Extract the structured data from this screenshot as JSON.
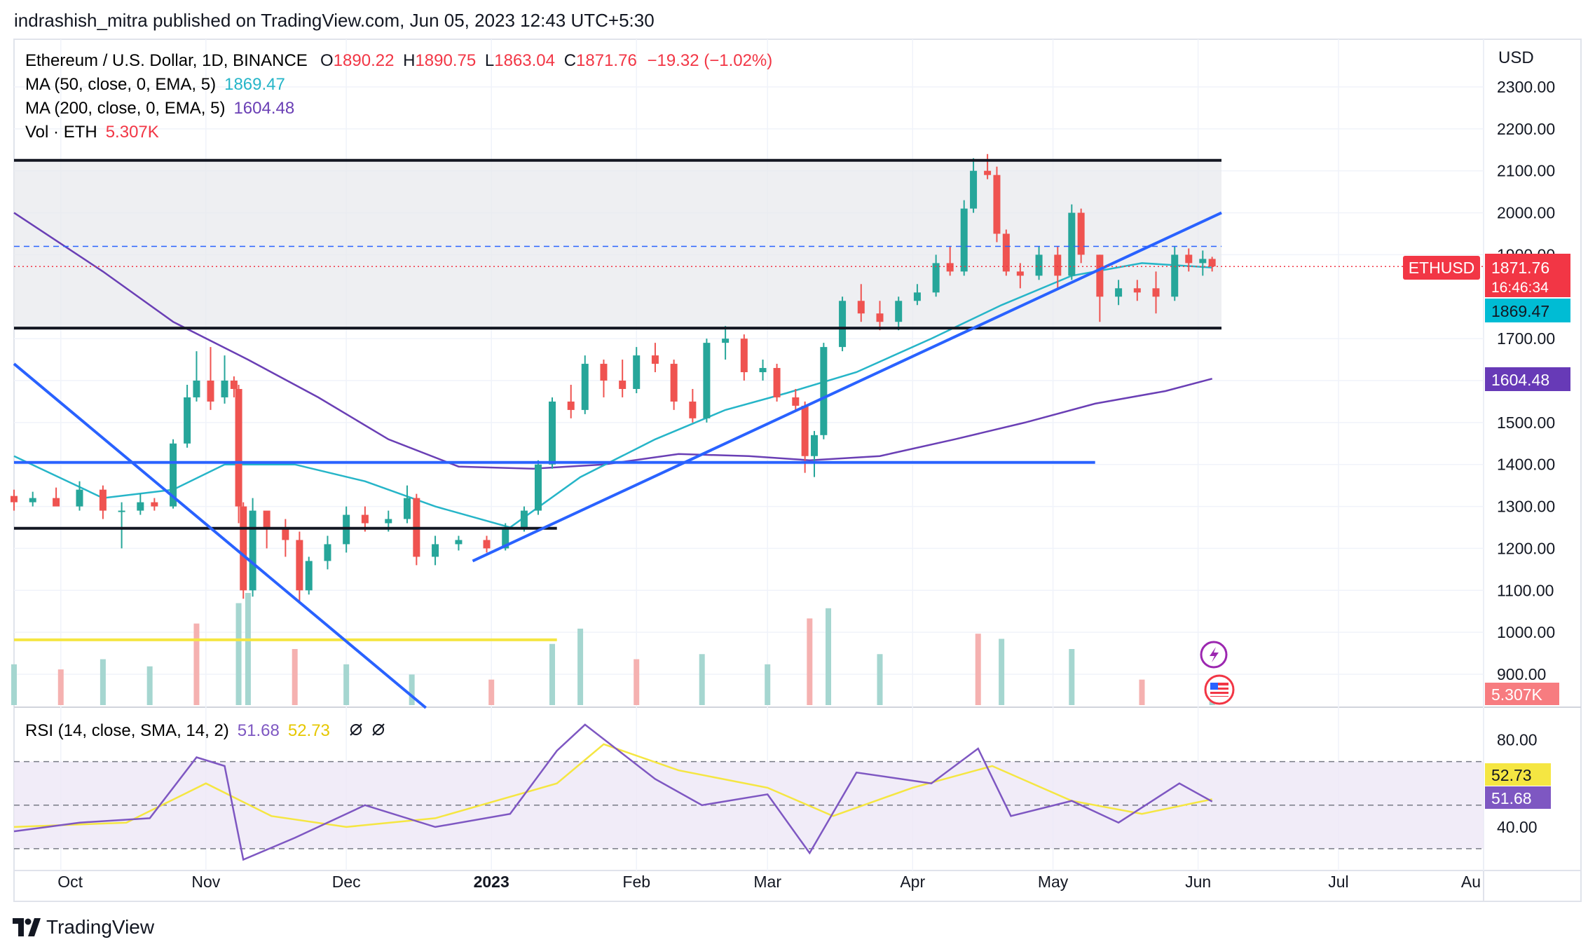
{
  "header": {
    "publish_line": "indrashish_mitra published on TradingView.com, Jun 05, 2023 12:43 UTC+5:30"
  },
  "footer": {
    "brand": "TradingView"
  },
  "legend": {
    "symbol": "Ethereum / U.S. Dollar, 1D, BINANCE",
    "o_label": "O",
    "o": "1890.22",
    "h_label": "H",
    "h": "1890.75",
    "l_label": "L",
    "l": "1863.04",
    "c_label": "C",
    "c": "1871.76",
    "change": "−19.32 (−1.02%)",
    "ma50_label": "MA (50, close, 0, EMA, 5)",
    "ma50": "1869.47",
    "ma200_label": "MA (200, close, 0, EMA, 5)",
    "ma200": "1604.48",
    "vol_label": "Vol · ETH",
    "vol": "5.307K"
  },
  "rsi_legend": {
    "label": "RSI (14, close, SMA, 14, 2)",
    "rsi": "51.68",
    "sma": "52.73",
    "icons": [
      "eye-off-icon",
      "eye-off-icon"
    ]
  },
  "price_axis": {
    "currency": "USD",
    "ticks": [
      "2300.00",
      "2200.00",
      "2100.00",
      "2000.00",
      "1900.00",
      "1700.00",
      "1600.00",
      "1500.00",
      "1400.00",
      "1300.00",
      "1200.00",
      "1100.00",
      "1000.00",
      "900.00"
    ]
  },
  "rsi_axis": {
    "ticks": [
      "80.00",
      "40.00"
    ]
  },
  "badges": {
    "ticker": "ETHUSD",
    "last_price": "1871.76",
    "countdown": "16:46:34",
    "ma50": "1869.47",
    "ma200": "1604.48",
    "volume": "5.307K",
    "rsi_sma": "52.73",
    "rsi": "51.68"
  },
  "time_axis": {
    "labels": [
      "Oct",
      "Nov",
      "Dec",
      "2023",
      "Feb",
      "Mar",
      "Apr",
      "May",
      "Jun",
      "Jul",
      "Au"
    ]
  },
  "colors": {
    "up": "#26a69a",
    "down": "#ef5350",
    "ma50": "#26b5c8",
    "ma200": "#6a3fb5",
    "trendline": "#2962ff",
    "volume_line": "#f5e642",
    "rsi": "#7e57c2",
    "rsi_sma": "#f5e642",
    "last_price": "#f23645",
    "badge_ma50": "#00bcd4",
    "badge_ma200": "#673ab7"
  },
  "chart_data": {
    "type": "candlestick",
    "symbol": "ETHUSD",
    "timeframe": "1D",
    "x_range": [
      "2022-09-21",
      "2023-08-01"
    ],
    "y_range": [
      820,
      2380
    ],
    "candles": [
      [
        "2022-09-21",
        1325,
        1340,
        1290,
        1310
      ],
      [
        "2022-09-25",
        1310,
        1335,
        1300,
        1320
      ],
      [
        "2022-09-30",
        1320,
        1345,
        1305,
        1300
      ],
      [
        "2022-10-05",
        1300,
        1360,
        1290,
        1340
      ],
      [
        "2022-10-10",
        1340,
        1350,
        1270,
        1290
      ],
      [
        "2022-10-14",
        1290,
        1310,
        1200,
        1290
      ],
      [
        "2022-10-18",
        1290,
        1330,
        1280,
        1310
      ],
      [
        "2022-10-21",
        1310,
        1320,
        1290,
        1300
      ],
      [
        "2022-10-25",
        1300,
        1460,
        1295,
        1450
      ],
      [
        "2022-10-28",
        1450,
        1590,
        1440,
        1560
      ],
      [
        "2022-10-30",
        1560,
        1670,
        1550,
        1600
      ],
      [
        "2022-11-02",
        1600,
        1680,
        1530,
        1550
      ],
      [
        "2022-11-05",
        1560,
        1660,
        1545,
        1600
      ],
      [
        "2022-11-07",
        1600,
        1610,
        1560,
        1580
      ],
      [
        "2022-11-08",
        1580,
        1590,
        1260,
        1300
      ],
      [
        "2022-11-09",
        1300,
        1310,
        1080,
        1100
      ],
      [
        "2022-11-11",
        1100,
        1320,
        1085,
        1290
      ],
      [
        "2022-11-14",
        1290,
        1280,
        1200,
        1250
      ],
      [
        "2022-11-18",
        1250,
        1270,
        1180,
        1220
      ],
      [
        "2022-11-21",
        1220,
        1240,
        1070,
        1100
      ],
      [
        "2022-11-23",
        1100,
        1180,
        1090,
        1170
      ],
      [
        "2022-11-27",
        1170,
        1230,
        1150,
        1210
      ],
      [
        "2022-12-01",
        1210,
        1300,
        1190,
        1280
      ],
      [
        "2022-12-05",
        1280,
        1300,
        1240,
        1260
      ],
      [
        "2022-12-10",
        1260,
        1290,
        1240,
        1270
      ],
      [
        "2022-12-14",
        1270,
        1350,
        1260,
        1320
      ],
      [
        "2022-12-16",
        1320,
        1330,
        1160,
        1180
      ],
      [
        "2022-12-20",
        1180,
        1230,
        1160,
        1210
      ],
      [
        "2022-12-25",
        1210,
        1230,
        1195,
        1220
      ],
      [
        "2022-12-31",
        1220,
        1230,
        1190,
        1200
      ],
      [
        "2023-01-04",
        1200,
        1260,
        1195,
        1250
      ],
      [
        "2023-01-08",
        1250,
        1300,
        1240,
        1290
      ],
      [
        "2023-01-11",
        1290,
        1410,
        1280,
        1400
      ],
      [
        "2023-01-14",
        1400,
        1560,
        1390,
        1550
      ],
      [
        "2023-01-18",
        1550,
        1590,
        1510,
        1530
      ],
      [
        "2023-01-21",
        1530,
        1660,
        1520,
        1640
      ],
      [
        "2023-01-25",
        1640,
        1650,
        1560,
        1600
      ],
      [
        "2023-01-29",
        1600,
        1650,
        1560,
        1580
      ],
      [
        "2023-02-01",
        1580,
        1680,
        1570,
        1660
      ],
      [
        "2023-02-05",
        1660,
        1690,
        1620,
        1640
      ],
      [
        "2023-02-09",
        1640,
        1650,
        1530,
        1550
      ],
      [
        "2023-02-13",
        1550,
        1580,
        1500,
        1510
      ],
      [
        "2023-02-16",
        1510,
        1700,
        1500,
        1690
      ],
      [
        "2023-02-20",
        1690,
        1730,
        1650,
        1700
      ],
      [
        "2023-02-24",
        1700,
        1710,
        1600,
        1620
      ],
      [
        "2023-02-28",
        1620,
        1650,
        1600,
        1630
      ],
      [
        "2023-03-03",
        1630,
        1640,
        1550,
        1560
      ],
      [
        "2023-03-07",
        1560,
        1580,
        1530,
        1540
      ],
      [
        "2023-03-09",
        1540,
        1550,
        1380,
        1420
      ],
      [
        "2023-03-11",
        1420,
        1480,
        1370,
        1470
      ],
      [
        "2023-03-13",
        1470,
        1690,
        1460,
        1680
      ],
      [
        "2023-03-17",
        1680,
        1800,
        1670,
        1790
      ],
      [
        "2023-03-21",
        1790,
        1830,
        1740,
        1760
      ],
      [
        "2023-03-25",
        1760,
        1790,
        1720,
        1740
      ],
      [
        "2023-03-29",
        1740,
        1800,
        1720,
        1790
      ],
      [
        "2023-04-02",
        1790,
        1830,
        1780,
        1810
      ],
      [
        "2023-04-06",
        1810,
        1900,
        1800,
        1880
      ],
      [
        "2023-04-09",
        1880,
        1920,
        1850,
        1860
      ],
      [
        "2023-04-12",
        1860,
        2030,
        1850,
        2010
      ],
      [
        "2023-04-14",
        2010,
        2130,
        2000,
        2100
      ],
      [
        "2023-04-17",
        2100,
        2140,
        2080,
        2090
      ],
      [
        "2023-04-19",
        2090,
        2110,
        1930,
        1950
      ],
      [
        "2023-04-21",
        1950,
        1960,
        1850,
        1860
      ],
      [
        "2023-04-24",
        1860,
        1880,
        1820,
        1850
      ],
      [
        "2023-04-28",
        1850,
        1920,
        1840,
        1900
      ],
      [
        "2023-05-02",
        1900,
        1920,
        1820,
        1850
      ],
      [
        "2023-05-05",
        1850,
        2020,
        1840,
        2000
      ],
      [
        "2023-05-07",
        2000,
        2010,
        1880,
        1900
      ],
      [
        "2023-05-11",
        1900,
        1900,
        1740,
        1800
      ],
      [
        "2023-05-15",
        1800,
        1840,
        1780,
        1820
      ],
      [
        "2023-05-19",
        1820,
        1840,
        1790,
        1810
      ],
      [
        "2023-05-23",
        1820,
        1860,
        1760,
        1800
      ],
      [
        "2023-05-27",
        1800,
        1920,
        1790,
        1900
      ],
      [
        "2023-05-30",
        1900,
        1915,
        1860,
        1880
      ],
      [
        "2023-06-02",
        1880,
        1910,
        1850,
        1890
      ],
      [
        "2023-06-04",
        1890,
        1895,
        1860,
        1872
      ]
    ],
    "ma50": [
      [
        "2022-09-21",
        1420
      ],
      [
        "2022-10-10",
        1320
      ],
      [
        "2022-10-25",
        1340
      ],
      [
        "2022-11-05",
        1400
      ],
      [
        "2022-11-20",
        1400
      ],
      [
        "2022-12-05",
        1360
      ],
      [
        "2022-12-20",
        1300
      ],
      [
        "2023-01-05",
        1250
      ],
      [
        "2023-01-20",
        1370
      ],
      [
        "2023-02-05",
        1460
      ],
      [
        "2023-02-20",
        1530
      ],
      [
        "2023-03-05",
        1570
      ],
      [
        "2023-03-20",
        1620
      ],
      [
        "2023-04-05",
        1700
      ],
      [
        "2023-04-20",
        1780
      ],
      [
        "2023-05-05",
        1850
      ],
      [
        "2023-05-20",
        1880
      ],
      [
        "2023-06-04",
        1869.47
      ]
    ],
    "ma200": [
      [
        "2022-09-21",
        2000
      ],
      [
        "2022-10-10",
        1860
      ],
      [
        "2022-10-25",
        1740
      ],
      [
        "2022-11-10",
        1650
      ],
      [
        "2022-11-25",
        1560
      ],
      [
        "2022-12-10",
        1460
      ],
      [
        "2022-12-25",
        1395
      ],
      [
        "2023-01-10",
        1390
      ],
      [
        "2023-01-25",
        1400
      ],
      [
        "2023-02-10",
        1425
      ],
      [
        "2023-02-25",
        1420
      ],
      [
        "2023-03-10",
        1410
      ],
      [
        "2023-03-25",
        1420
      ],
      [
        "2023-04-10",
        1460
      ],
      [
        "2023-04-25",
        1500
      ],
      [
        "2023-05-10",
        1545
      ],
      [
        "2023-05-25",
        1575
      ],
      [
        "2023-06-04",
        1604.48
      ]
    ],
    "support_resistance": [
      {
        "from": "2022-09-21",
        "to": "2023-06-06",
        "price": 2125
      },
      {
        "from": "2022-09-21",
        "to": "2023-06-06",
        "price": 1725
      },
      {
        "from": "2022-09-21",
        "to": "2023-05-10",
        "price": 1405
      },
      {
        "from": "2022-09-21",
        "to": "2023-01-15",
        "price": 1248
      }
    ],
    "trendlines": [
      {
        "from": [
          "2022-09-21",
          1640
        ],
        "to": [
          "2022-12-18",
          820
        ]
      },
      {
        "from": [
          "2022-12-28",
          1170
        ],
        "to": [
          "2023-06-06",
          2000
        ]
      }
    ],
    "dashed_levels": [
      1920
    ],
    "volume": [
      [
        "2022-09-21",
        40
      ],
      [
        "2022-10-01",
        35
      ],
      [
        "2022-10-10",
        45
      ],
      [
        "2022-10-20",
        38
      ],
      [
        "2022-10-30",
        80
      ],
      [
        "2022-11-08",
        100
      ],
      [
        "2022-11-10",
        110
      ],
      [
        "2022-11-20",
        55
      ],
      [
        "2022-12-01",
        40
      ],
      [
        "2022-12-15",
        30
      ],
      [
        "2023-01-01",
        25
      ],
      [
        "2023-01-14",
        60
      ],
      [
        "2023-01-20",
        75
      ],
      [
        "2023-02-01",
        45
      ],
      [
        "2023-02-15",
        50
      ],
      [
        "2023-03-01",
        40
      ],
      [
        "2023-03-10",
        85
      ],
      [
        "2023-03-14",
        95
      ],
      [
        "2023-03-25",
        50
      ],
      [
        "2023-04-15",
        70
      ],
      [
        "2023-04-20",
        65
      ],
      [
        "2023-05-05",
        55
      ],
      [
        "2023-05-20",
        25
      ],
      [
        "2023-06-04",
        18
      ]
    ],
    "volume_level": 982,
    "rsi": [
      [
        "2022-09-21",
        38
      ],
      [
        "2022-10-05",
        42
      ],
      [
        "2022-10-20",
        44
      ],
      [
        "2022-10-30",
        72
      ],
      [
        "2022-11-05",
        68
      ],
      [
        "2022-11-09",
        25
      ],
      [
        "2022-11-20",
        35
      ],
      [
        "2022-12-05",
        50
      ],
      [
        "2022-12-20",
        40
      ],
      [
        "2023-01-05",
        46
      ],
      [
        "2023-01-15",
        75
      ],
      [
        "2023-01-21",
        87
      ],
      [
        "2023-02-05",
        62
      ],
      [
        "2023-02-15",
        50
      ],
      [
        "2023-03-01",
        55
      ],
      [
        "2023-03-10",
        28
      ],
      [
        "2023-03-20",
        65
      ],
      [
        "2023-04-05",
        60
      ],
      [
        "2023-04-15",
        76
      ],
      [
        "2023-04-22",
        45
      ],
      [
        "2023-05-05",
        52
      ],
      [
        "2023-05-15",
        42
      ],
      [
        "2023-05-28",
        60
      ],
      [
        "2023-06-04",
        51.68
      ]
    ],
    "rsi_sma": [
      [
        "2022-09-21",
        40
      ],
      [
        "2022-10-15",
        42
      ],
      [
        "2022-11-01",
        60
      ],
      [
        "2022-11-15",
        45
      ],
      [
        "2022-12-01",
        40
      ],
      [
        "2022-12-20",
        44
      ],
      [
        "2023-01-15",
        60
      ],
      [
        "2023-01-25",
        78
      ],
      [
        "2023-02-10",
        66
      ],
      [
        "2023-03-01",
        58
      ],
      [
        "2023-03-15",
        45
      ],
      [
        "2023-04-01",
        58
      ],
      [
        "2023-04-18",
        68
      ],
      [
        "2023-05-05",
        52
      ],
      [
        "2023-05-20",
        46
      ],
      [
        "2023-06-04",
        52.73
      ]
    ],
    "rsi_range": [
      20,
      95
    ],
    "rsi_bands": [
      70,
      50,
      30
    ]
  }
}
